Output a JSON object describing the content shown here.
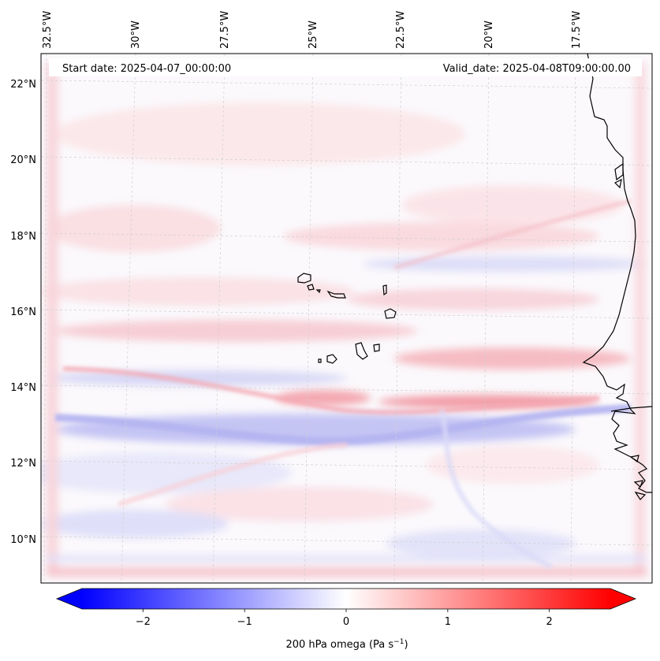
{
  "map": {
    "start_label": "Start date: 2025-04-07_00:00:00",
    "valid_label": "Valid_date: 2025-04-08T09:00:00.00",
    "lon_labels": [
      "32.5°W",
      "30°W",
      "27.5°W",
      "25°W",
      "22.5°W",
      "20°W",
      "17.5°W"
    ],
    "lat_labels": [
      "22°N",
      "20°N",
      "18°N",
      "16°N",
      "14°N",
      "12°N",
      "10°N"
    ]
  },
  "colorbar": {
    "ticks": [
      "−2",
      "−1",
      "0",
      "1",
      "2"
    ],
    "tick_values": [
      -2,
      -1,
      0,
      1,
      2
    ],
    "range": [
      -2.6,
      2.6
    ],
    "label_text": "200 hPa omega (Pa s",
    "label_unit_sup": "−1",
    "label_close": ")",
    "colors": {
      "negative": "#0000ff",
      "zero": "#ffffff",
      "positive": "#ff0000"
    }
  }
}
